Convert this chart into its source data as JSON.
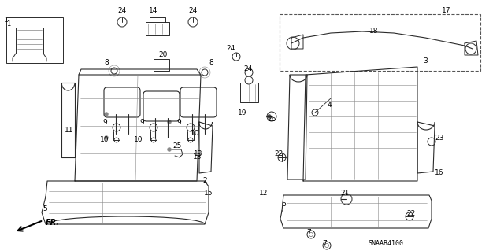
{
  "background_color": "#ffffff",
  "diagram_code": "SNAAB4100",
  "line_color": "#2a2a2a",
  "light_gray": "#aaaaaa",
  "figsize": [
    6.4,
    3.19
  ],
  "dpi": 100
}
